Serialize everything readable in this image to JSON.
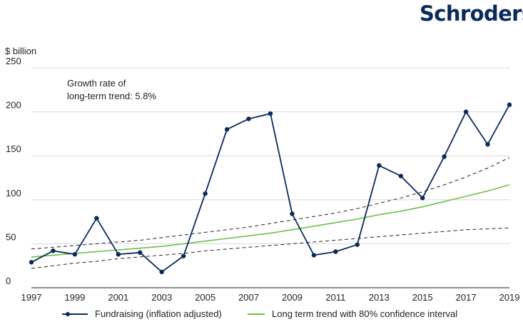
{
  "brand": {
    "logo_text": "Schroders",
    "logo_color": "#0b2a5b"
  },
  "chart_data": {
    "type": "line",
    "title": "",
    "ylabel": "$ billion",
    "xlabel": "",
    "annotation": [
      "Growth rate of",
      "long-term trend: 5.8%"
    ],
    "x_tick_labels": [
      "1997",
      "1999",
      "2001",
      "2003",
      "2005",
      "2007",
      "2009",
      "2011",
      "2013",
      "2015",
      "2017",
      "2019"
    ],
    "y_tick_labels": [
      "0",
      "50",
      "100",
      "150",
      "200",
      "250"
    ],
    "ylim": [
      0,
      250
    ],
    "xlim": [
      1997,
      2019
    ],
    "grid": "horizontal",
    "legend_position": "bottom",
    "x": [
      1997,
      1998,
      1999,
      2000,
      2001,
      2002,
      2003,
      2004,
      2005,
      2006,
      2007,
      2008,
      2009,
      2010,
      2011,
      2012,
      2013,
      2014,
      2015,
      2016,
      2017,
      2018,
      2019
    ],
    "series": [
      {
        "name": "Fundraising (inflation adjusted)",
        "style": "line-markers",
        "color": "#0b2a5b",
        "values": [
          29,
          42,
          38,
          79,
          38,
          40,
          18,
          36,
          107,
          180,
          192,
          198,
          84,
          37,
          41,
          49,
          139,
          127,
          102,
          149,
          200,
          163,
          208
        ]
      },
      {
        "name": "Long term trend with 80% confidence interval",
        "style": "line",
        "color": "#6cc04a",
        "values": [
          35,
          37,
          39,
          41,
          43,
          45,
          47,
          50,
          53,
          56,
          59,
          62,
          66,
          70,
          74,
          78,
          83,
          87,
          92,
          98,
          104,
          110,
          117
        ]
      },
      {
        "name": "",
        "style": "dashed",
        "color": "#222222",
        "values": [
          44,
          46,
          48,
          50,
          52,
          54,
          57,
          60,
          63,
          66,
          69,
          73,
          77,
          81,
          85,
          90,
          96,
          102,
          109,
          117,
          126,
          136,
          148
        ]
      },
      {
        "name": "",
        "style": "dashed",
        "color": "#222222",
        "values": [
          22,
          25,
          28,
          30,
          33,
          35,
          37,
          39,
          42,
          44,
          46,
          48,
          50,
          52,
          54,
          56,
          58,
          60,
          62,
          64,
          66,
          67,
          68
        ]
      }
    ]
  },
  "legend": {
    "fundraising_label": "Fundraising (inflation adjusted)",
    "trend_label": "Long term trend with 80% confidence interval"
  },
  "colors": {
    "grid": "#d8d8d8",
    "axis": "#222222"
  }
}
